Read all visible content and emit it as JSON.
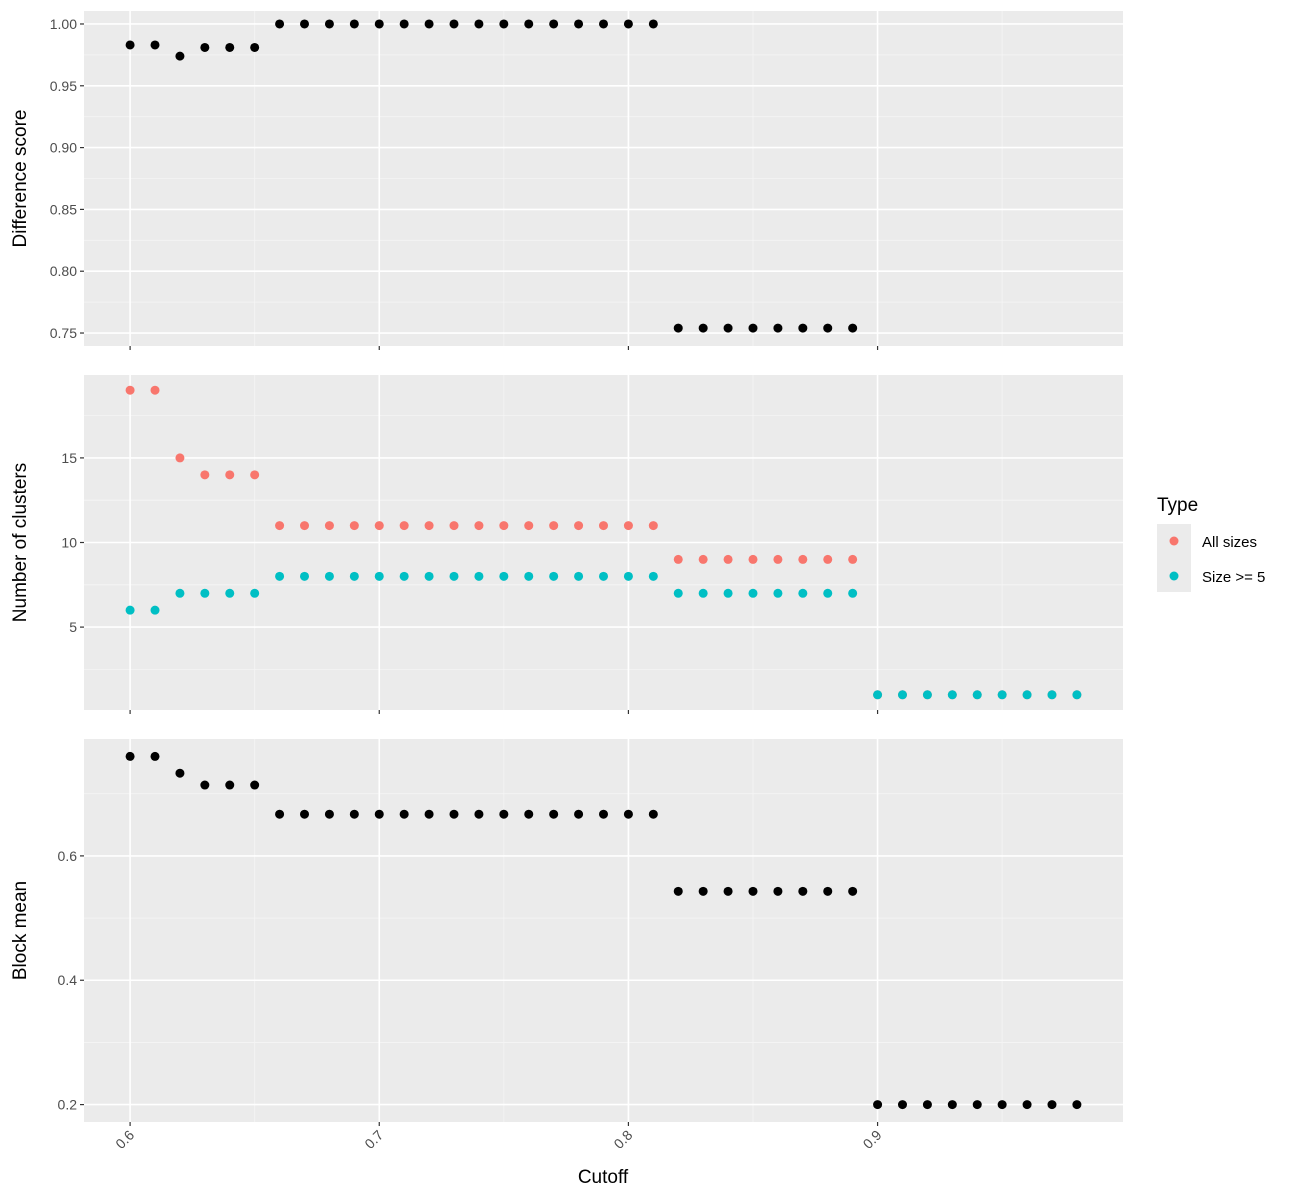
{
  "chart_data": {
    "type": "scatter",
    "xlabel": "Cutoff",
    "x_ticks": [
      "0.6",
      "0.7",
      "0.8",
      "0.9"
    ],
    "x_tick_values": [
      0.6,
      0.7,
      0.8,
      0.9
    ],
    "xlim": [
      0.5815,
      0.9985
    ],
    "grid": true,
    "legend": {
      "title": "Type",
      "placement": "right",
      "entries": [
        {
          "label": "All sizes",
          "color": "#F8766D"
        },
        {
          "label": "Size >= 5",
          "color": "#00BFC4"
        }
      ]
    },
    "panels": [
      {
        "ylabel": "Difference score",
        "ylim": [
          0.7395,
          1.0105
        ],
        "y_ticks": [
          "0.75",
          "0.80",
          "0.85",
          "0.90",
          "0.95",
          "1.00"
        ],
        "y_tick_values": [
          0.75,
          0.8,
          0.85,
          0.9,
          0.95,
          1.0
        ],
        "series": [
          {
            "color": "#000000",
            "x": [
              0.6,
              0.61,
              0.62,
              0.63,
              0.64,
              0.65,
              0.66,
              0.67,
              0.68,
              0.69,
              0.7,
              0.71,
              0.72,
              0.73,
              0.74,
              0.75,
              0.76,
              0.77,
              0.78,
              0.79,
              0.8,
              0.81,
              0.82,
              0.83,
              0.84,
              0.85,
              0.86,
              0.87,
              0.88,
              0.89
            ],
            "y": [
              0.983,
              0.983,
              0.974,
              0.981,
              0.981,
              0.981,
              1.0,
              1.0,
              1.0,
              1.0,
              1.0,
              1.0,
              1.0,
              1.0,
              1.0,
              1.0,
              1.0,
              1.0,
              1.0,
              1.0,
              1.0,
              1.0,
              0.754,
              0.754,
              0.754,
              0.754,
              0.754,
              0.754,
              0.754,
              0.754
            ]
          }
        ]
      },
      {
        "ylabel": "Number of clusters",
        "ylim": [
          0.1,
          19.9
        ],
        "y_ticks": [
          "5",
          "10",
          "15"
        ],
        "y_tick_values": [
          5,
          10,
          15
        ],
        "series": [
          {
            "name": "All sizes",
            "color": "#F8766D",
            "x": [
              0.6,
              0.61,
              0.62,
              0.63,
              0.64,
              0.65,
              0.66,
              0.67,
              0.68,
              0.69,
              0.7,
              0.71,
              0.72,
              0.73,
              0.74,
              0.75,
              0.76,
              0.77,
              0.78,
              0.79,
              0.8,
              0.81,
              0.82,
              0.83,
              0.84,
              0.85,
              0.86,
              0.87,
              0.88,
              0.89,
              0.9,
              0.91,
              0.92,
              0.93,
              0.94,
              0.95,
              0.96,
              0.97,
              0.98
            ],
            "y": [
              19,
              19,
              15,
              14,
              14,
              14,
              11,
              11,
              11,
              11,
              11,
              11,
              11,
              11,
              11,
              11,
              11,
              11,
              11,
              11,
              11,
              11,
              9,
              9,
              9,
              9,
              9,
              9,
              9,
              9,
              1,
              1,
              1,
              1,
              1,
              1,
              1,
              1,
              1
            ]
          },
          {
            "name": "Size >= 5",
            "color": "#00BFC4",
            "x": [
              0.6,
              0.61,
              0.62,
              0.63,
              0.64,
              0.65,
              0.66,
              0.67,
              0.68,
              0.69,
              0.7,
              0.71,
              0.72,
              0.73,
              0.74,
              0.75,
              0.76,
              0.77,
              0.78,
              0.79,
              0.8,
              0.81,
              0.82,
              0.83,
              0.84,
              0.85,
              0.86,
              0.87,
              0.88,
              0.89,
              0.9,
              0.91,
              0.92,
              0.93,
              0.94,
              0.95,
              0.96,
              0.97,
              0.98
            ],
            "y": [
              6,
              6,
              7,
              7,
              7,
              7,
              8,
              8,
              8,
              8,
              8,
              8,
              8,
              8,
              8,
              8,
              8,
              8,
              8,
              8,
              8,
              8,
              7,
              7,
              7,
              7,
              7,
              7,
              7,
              7,
              1,
              1,
              1,
              1,
              1,
              1,
              1,
              1,
              1
            ]
          }
        ]
      },
      {
        "ylabel": "Block mean",
        "ylim": [
          0.172,
          0.788
        ],
        "y_ticks": [
          "0.2",
          "0.4",
          "0.6"
        ],
        "y_tick_values": [
          0.2,
          0.4,
          0.6
        ],
        "series": [
          {
            "color": "#000000",
            "x": [
              0.6,
              0.61,
              0.62,
              0.63,
              0.64,
              0.65,
              0.66,
              0.67,
              0.68,
              0.69,
              0.7,
              0.71,
              0.72,
              0.73,
              0.74,
              0.75,
              0.76,
              0.77,
              0.78,
              0.79,
              0.8,
              0.81,
              0.82,
              0.83,
              0.84,
              0.85,
              0.86,
              0.87,
              0.88,
              0.89,
              0.9,
              0.91,
              0.92,
              0.93,
              0.94,
              0.95,
              0.96,
              0.97,
              0.98
            ],
            "y": [
              0.76,
              0.76,
              0.733,
              0.714,
              0.714,
              0.714,
              0.667,
              0.667,
              0.667,
              0.667,
              0.667,
              0.667,
              0.667,
              0.667,
              0.667,
              0.667,
              0.667,
              0.667,
              0.667,
              0.667,
              0.667,
              0.667,
              0.543,
              0.543,
              0.543,
              0.543,
              0.543,
              0.543,
              0.543,
              0.543,
              0.2,
              0.2,
              0.2,
              0.2,
              0.2,
              0.2,
              0.2,
              0.2,
              0.2
            ]
          }
        ]
      }
    ]
  }
}
